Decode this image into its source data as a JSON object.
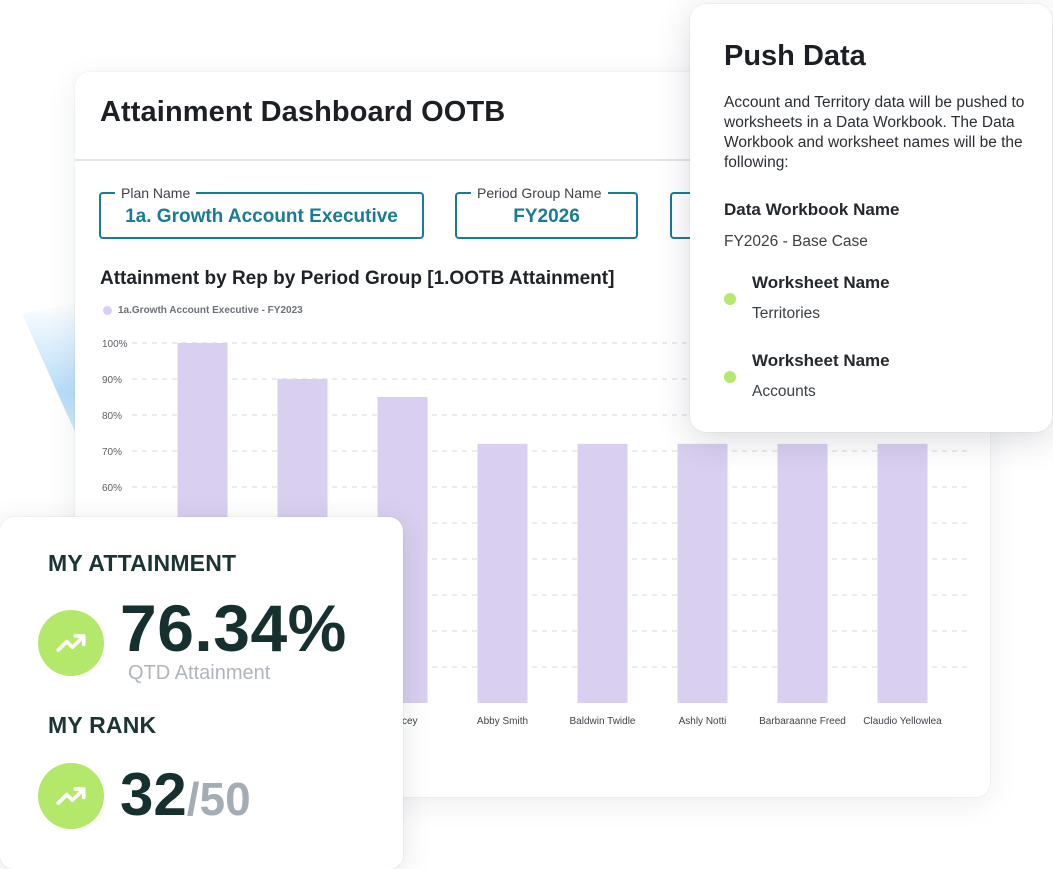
{
  "dashboard": {
    "title": "Attainment Dashboard OOTB",
    "filters": [
      {
        "label": "Plan Name",
        "value": "1a. Growth Account Executive"
      },
      {
        "label": "Period Group Name",
        "value": "FY2026"
      }
    ]
  },
  "chart_data": {
    "type": "bar",
    "title": "Attainment by Rep by Period Group [1.OOTB Attainment]",
    "series": [
      {
        "name": "1a.Growth Account Executive - FY2023",
        "color": "#d9cff0",
        "values": [
          100,
          90,
          85,
          72,
          72,
          72,
          72,
          72
        ]
      }
    ],
    "categories": [
      "",
      "",
      "Kelcey",
      "Abby Smith",
      "Baldwin Twidle",
      "Ashly Notti",
      "Barbaraanne Freed",
      "Claudio Yellowlea"
    ],
    "y_ticks": [
      "100%",
      "90%",
      "80%",
      "70%",
      "60%"
    ],
    "ylim": [
      0,
      100
    ],
    "grid": true,
    "legend_position": "top-left"
  },
  "push_data": {
    "title": "Push Data",
    "description": "Account and Territory data will be pushed to worksheets in a Data Workbook. The Data Workbook and worksheet names will be the following:",
    "workbook_label": "Data Workbook Name",
    "workbook_value": "FY2026 - Base Case",
    "worksheets": [
      {
        "label": "Worksheet Name",
        "value": "Territories"
      },
      {
        "label": "Worksheet Name",
        "value": "Accounts"
      }
    ],
    "dot_color": "#b6e86e"
  },
  "attainment": {
    "heading": "MY ATTAINMENT",
    "value": "76.34%",
    "sub_label": "QTD Attainment",
    "rank_heading": "MY RANK",
    "rank_value": "32",
    "rank_total": "/50",
    "icon": "trending-up-icon",
    "badge_color": "#b3e86a"
  }
}
